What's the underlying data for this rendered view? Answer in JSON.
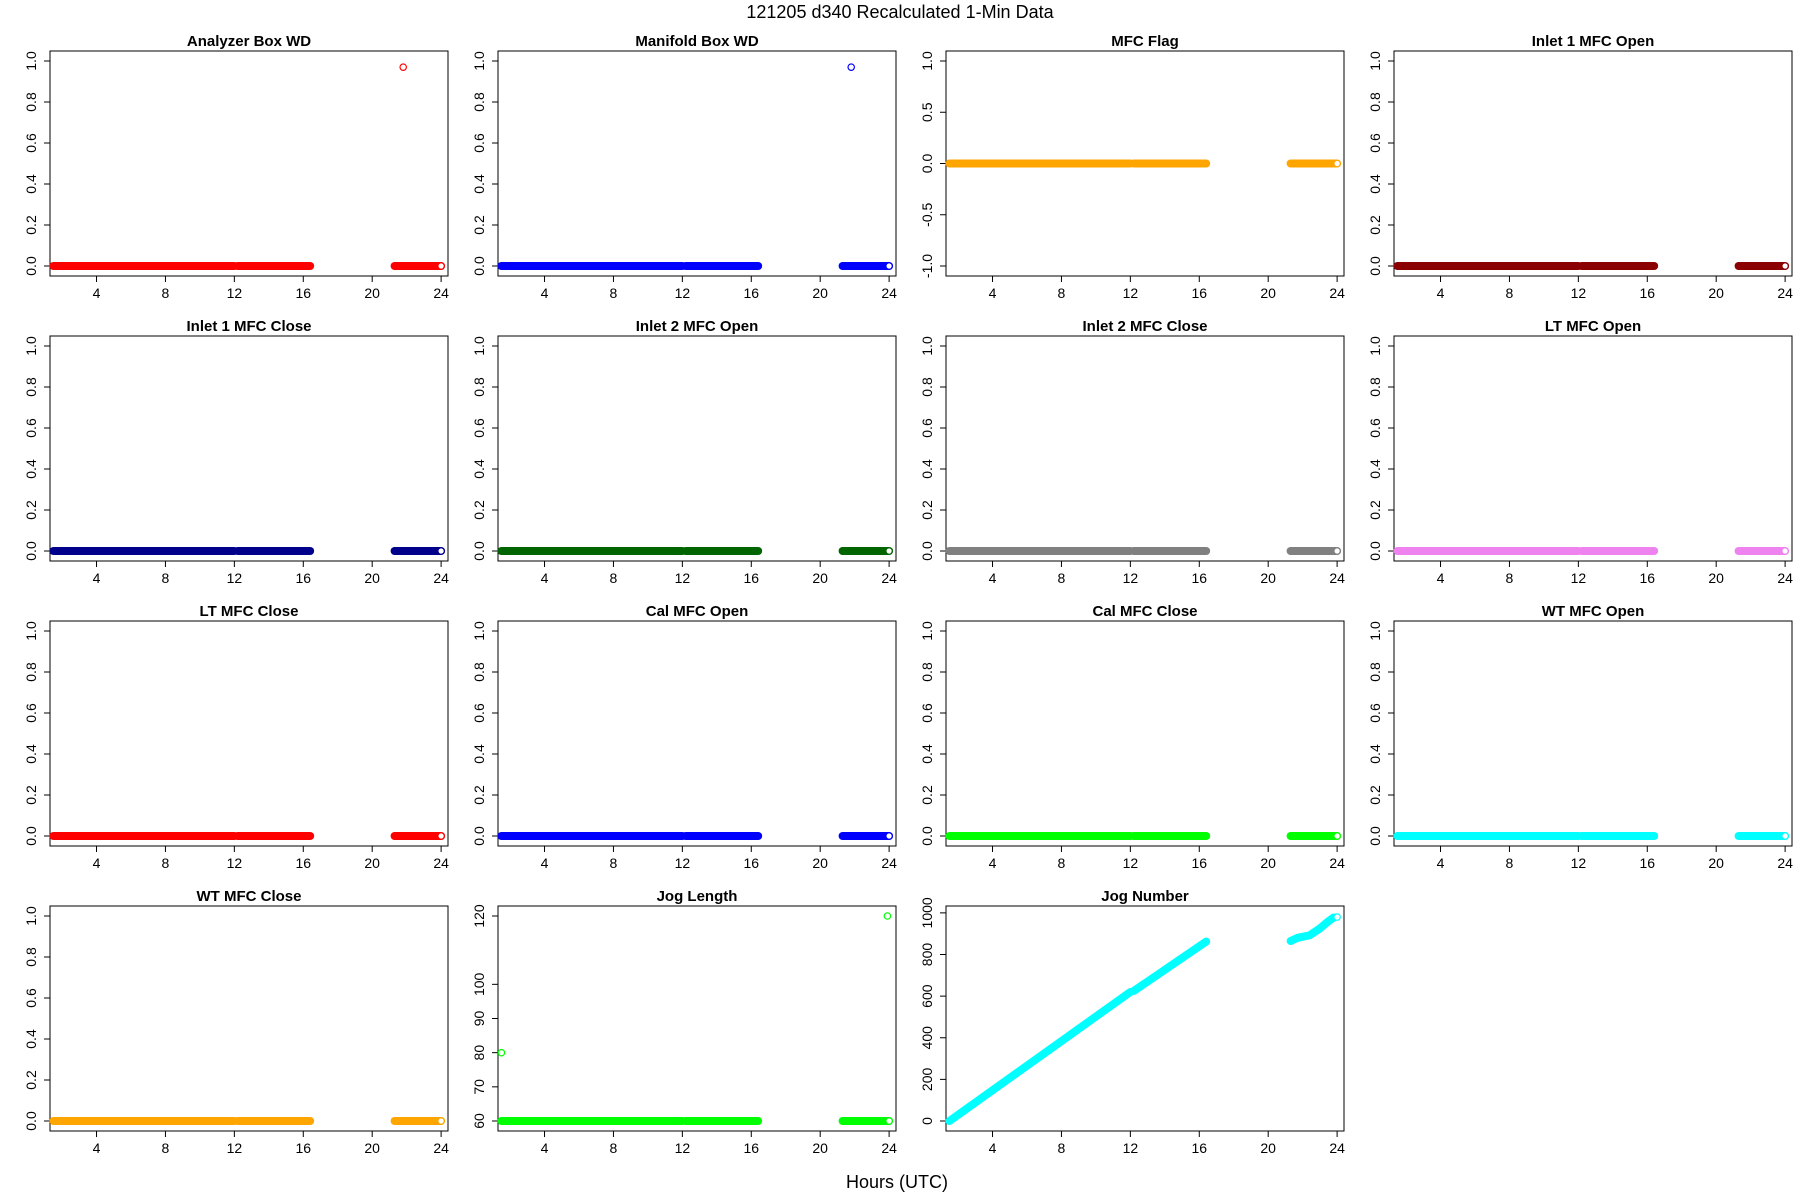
{
  "figure": {
    "title": "121205   d340   Recalculated 1-Min Data",
    "xlabel": "Hours (UTC)"
  },
  "chart_data": [
    {
      "type": "scatter",
      "title": "Analyzer Box WD",
      "xlabel": "",
      "ylabel": "",
      "xlim": [
        1.3,
        24.4
      ],
      "ylim": [
        0,
        1
      ],
      "xticks": [
        4,
        8,
        12,
        16,
        20,
        24
      ],
      "yticks": [
        0.0,
        0.2,
        0.4,
        0.6,
        0.8,
        1.0
      ],
      "ytick_labels": [
        "0.0",
        "0.2",
        "0.4",
        "0.6",
        "0.8",
        "1.0"
      ],
      "color": "#ff0000",
      "segments": [
        {
          "x_from": 1.5,
          "x_to": 12.0,
          "y": 0
        },
        {
          "x_from": 12.2,
          "x_to": 16.4,
          "y": 0
        },
        {
          "x_from": 21.3,
          "x_to": 24.0,
          "y": 0
        }
      ],
      "outliers": [
        {
          "x": 21.8,
          "y": 0.97
        }
      ],
      "final_point": {
        "x": 24.0,
        "y": 0
      }
    },
    {
      "type": "scatter",
      "title": "Manifold Box WD",
      "xlabel": "",
      "ylabel": "",
      "xlim": [
        1.3,
        24.4
      ],
      "ylim": [
        0,
        1
      ],
      "xticks": [
        4,
        8,
        12,
        16,
        20,
        24
      ],
      "yticks": [
        0.0,
        0.2,
        0.4,
        0.6,
        0.8,
        1.0
      ],
      "ytick_labels": [
        "0.0",
        "0.2",
        "0.4",
        "0.6",
        "0.8",
        "1.0"
      ],
      "color": "#0000ff",
      "segments": [
        {
          "x_from": 1.5,
          "x_to": 12.0,
          "y": 0
        },
        {
          "x_from": 12.2,
          "x_to": 16.4,
          "y": 0
        },
        {
          "x_from": 21.3,
          "x_to": 24.0,
          "y": 0
        }
      ],
      "outliers": [
        {
          "x": 21.8,
          "y": 0.97
        }
      ],
      "final_point": {
        "x": 24.0,
        "y": 0
      }
    },
    {
      "type": "scatter",
      "title": "MFC Flag",
      "xlabel": "",
      "ylabel": "",
      "xlim": [
        1.3,
        24.4
      ],
      "ylim": [
        -1,
        1
      ],
      "xticks": [
        4,
        8,
        12,
        16,
        20,
        24
      ],
      "yticks": [
        -1.0,
        -0.5,
        0.0,
        0.5,
        1.0
      ],
      "ytick_labels": [
        "-1.0",
        "-0.5",
        "0.0",
        "0.5",
        "1.0"
      ],
      "color": "#ffa500",
      "segments": [
        {
          "x_from": 1.5,
          "x_to": 12.0,
          "y": 0
        },
        {
          "x_from": 12.2,
          "x_to": 16.4,
          "y": 0
        },
        {
          "x_from": 21.3,
          "x_to": 24.0,
          "y": 0
        }
      ],
      "outliers": [],
      "final_point": {
        "x": 24.0,
        "y": 0
      }
    },
    {
      "type": "scatter",
      "title": "Inlet 1 MFC Open",
      "xlabel": "",
      "ylabel": "",
      "xlim": [
        1.3,
        24.4
      ],
      "ylim": [
        0,
        1
      ],
      "xticks": [
        4,
        8,
        12,
        16,
        20,
        24
      ],
      "yticks": [
        0.0,
        0.2,
        0.4,
        0.6,
        0.8,
        1.0
      ],
      "ytick_labels": [
        "0.0",
        "0.2",
        "0.4",
        "0.6",
        "0.8",
        "1.0"
      ],
      "color": "#8b0000",
      "segments": [
        {
          "x_from": 1.5,
          "x_to": 12.0,
          "y": 0
        },
        {
          "x_from": 12.2,
          "x_to": 16.4,
          "y": 0
        },
        {
          "x_from": 21.3,
          "x_to": 24.0,
          "y": 0
        }
      ],
      "outliers": [],
      "final_point": {
        "x": 24.0,
        "y": 0
      }
    },
    {
      "type": "scatter",
      "title": "Inlet 1 MFC Close",
      "xlabel": "",
      "ylabel": "",
      "xlim": [
        1.3,
        24.4
      ],
      "ylim": [
        0,
        1
      ],
      "xticks": [
        4,
        8,
        12,
        16,
        20,
        24
      ],
      "yticks": [
        0.0,
        0.2,
        0.4,
        0.6,
        0.8,
        1.0
      ],
      "ytick_labels": [
        "0.0",
        "0.2",
        "0.4",
        "0.6",
        "0.8",
        "1.0"
      ],
      "color": "#00008b",
      "segments": [
        {
          "x_from": 1.5,
          "x_to": 12.0,
          "y": 0
        },
        {
          "x_from": 12.2,
          "x_to": 16.4,
          "y": 0
        },
        {
          "x_from": 21.3,
          "x_to": 24.0,
          "y": 0
        }
      ],
      "outliers": [],
      "final_point": {
        "x": 24.0,
        "y": 0
      }
    },
    {
      "type": "scatter",
      "title": "Inlet 2 MFC Open",
      "xlabel": "",
      "ylabel": "",
      "xlim": [
        1.3,
        24.4
      ],
      "ylim": [
        0,
        1
      ],
      "xticks": [
        4,
        8,
        12,
        16,
        20,
        24
      ],
      "yticks": [
        0.0,
        0.2,
        0.4,
        0.6,
        0.8,
        1.0
      ],
      "ytick_labels": [
        "0.0",
        "0.2",
        "0.4",
        "0.6",
        "0.8",
        "1.0"
      ],
      "color": "#006400",
      "segments": [
        {
          "x_from": 1.5,
          "x_to": 12.0,
          "y": 0
        },
        {
          "x_from": 12.2,
          "x_to": 16.4,
          "y": 0
        },
        {
          "x_from": 21.3,
          "x_to": 24.0,
          "y": 0
        }
      ],
      "outliers": [],
      "final_point": {
        "x": 24.0,
        "y": 0
      }
    },
    {
      "type": "scatter",
      "title": "Inlet 2 MFC Close",
      "xlabel": "",
      "ylabel": "",
      "xlim": [
        1.3,
        24.4
      ],
      "ylim": [
        0,
        1
      ],
      "xticks": [
        4,
        8,
        12,
        16,
        20,
        24
      ],
      "yticks": [
        0.0,
        0.2,
        0.4,
        0.6,
        0.8,
        1.0
      ],
      "ytick_labels": [
        "0.0",
        "0.2",
        "0.4",
        "0.6",
        "0.8",
        "1.0"
      ],
      "color": "#808080",
      "segments": [
        {
          "x_from": 1.5,
          "x_to": 12.0,
          "y": 0
        },
        {
          "x_from": 12.2,
          "x_to": 16.4,
          "y": 0
        },
        {
          "x_from": 21.3,
          "x_to": 24.0,
          "y": 0
        }
      ],
      "outliers": [],
      "final_point": {
        "x": 24.0,
        "y": 0
      }
    },
    {
      "type": "scatter",
      "title": "LT MFC Open",
      "xlabel": "",
      "ylabel": "",
      "xlim": [
        1.3,
        24.4
      ],
      "ylim": [
        0,
        1
      ],
      "xticks": [
        4,
        8,
        12,
        16,
        20,
        24
      ],
      "yticks": [
        0.0,
        0.2,
        0.4,
        0.6,
        0.8,
        1.0
      ],
      "ytick_labels": [
        "0.0",
        "0.2",
        "0.4",
        "0.6",
        "0.8",
        "1.0"
      ],
      "color": "#ee82ee",
      "segments": [
        {
          "x_from": 1.5,
          "x_to": 12.0,
          "y": 0
        },
        {
          "x_from": 12.2,
          "x_to": 16.4,
          "y": 0
        },
        {
          "x_from": 21.3,
          "x_to": 24.0,
          "y": 0
        }
      ],
      "outliers": [],
      "final_point": {
        "x": 24.0,
        "y": 0
      }
    },
    {
      "type": "scatter",
      "title": "LT MFC Close",
      "xlabel": "",
      "ylabel": "",
      "xlim": [
        1.3,
        24.4
      ],
      "ylim": [
        0,
        1
      ],
      "xticks": [
        4,
        8,
        12,
        16,
        20,
        24
      ],
      "yticks": [
        0.0,
        0.2,
        0.4,
        0.6,
        0.8,
        1.0
      ],
      "ytick_labels": [
        "0.0",
        "0.2",
        "0.4",
        "0.6",
        "0.8",
        "1.0"
      ],
      "color": "#ff0000",
      "segments": [
        {
          "x_from": 1.5,
          "x_to": 12.0,
          "y": 0
        },
        {
          "x_from": 12.2,
          "x_to": 16.4,
          "y": 0
        },
        {
          "x_from": 21.3,
          "x_to": 24.0,
          "y": 0
        }
      ],
      "outliers": [],
      "final_point": {
        "x": 24.0,
        "y": 0
      }
    },
    {
      "type": "scatter",
      "title": "Cal MFC Open",
      "xlabel": "",
      "ylabel": "",
      "xlim": [
        1.3,
        24.4
      ],
      "ylim": [
        0,
        1
      ],
      "xticks": [
        4,
        8,
        12,
        16,
        20,
        24
      ],
      "yticks": [
        0.0,
        0.2,
        0.4,
        0.6,
        0.8,
        1.0
      ],
      "ytick_labels": [
        "0.0",
        "0.2",
        "0.4",
        "0.6",
        "0.8",
        "1.0"
      ],
      "color": "#0000ff",
      "segments": [
        {
          "x_from": 1.5,
          "x_to": 12.0,
          "y": 0
        },
        {
          "x_from": 12.2,
          "x_to": 16.4,
          "y": 0
        },
        {
          "x_from": 21.3,
          "x_to": 24.0,
          "y": 0
        }
      ],
      "outliers": [],
      "final_point": {
        "x": 24.0,
        "y": 0
      }
    },
    {
      "type": "scatter",
      "title": "Cal MFC Close",
      "xlabel": "",
      "ylabel": "",
      "xlim": [
        1.3,
        24.4
      ],
      "ylim": [
        0,
        1
      ],
      "xticks": [
        4,
        8,
        12,
        16,
        20,
        24
      ],
      "yticks": [
        0.0,
        0.2,
        0.4,
        0.6,
        0.8,
        1.0
      ],
      "ytick_labels": [
        "0.0",
        "0.2",
        "0.4",
        "0.6",
        "0.8",
        "1.0"
      ],
      "color": "#00ff00",
      "segments": [
        {
          "x_from": 1.5,
          "x_to": 12.0,
          "y": 0
        },
        {
          "x_from": 12.2,
          "x_to": 16.4,
          "y": 0
        },
        {
          "x_from": 21.3,
          "x_to": 24.0,
          "y": 0
        }
      ],
      "outliers": [],
      "final_point": {
        "x": 24.0,
        "y": 0
      }
    },
    {
      "type": "scatter",
      "title": "WT MFC Open",
      "xlabel": "",
      "ylabel": "",
      "xlim": [
        1.3,
        24.4
      ],
      "ylim": [
        0,
        1
      ],
      "xticks": [
        4,
        8,
        12,
        16,
        20,
        24
      ],
      "yticks": [
        0.0,
        0.2,
        0.4,
        0.6,
        0.8,
        1.0
      ],
      "ytick_labels": [
        "0.0",
        "0.2",
        "0.4",
        "0.6",
        "0.8",
        "1.0"
      ],
      "color": "#00ffff",
      "segments": [
        {
          "x_from": 1.5,
          "x_to": 12.0,
          "y": 0
        },
        {
          "x_from": 12.2,
          "x_to": 16.4,
          "y": 0
        },
        {
          "x_from": 21.3,
          "x_to": 24.0,
          "y": 0
        }
      ],
      "outliers": [],
      "final_point": {
        "x": 24.0,
        "y": 0
      }
    },
    {
      "type": "scatter",
      "title": "WT MFC Close",
      "xlabel": "",
      "ylabel": "",
      "xlim": [
        1.3,
        24.4
      ],
      "ylim": [
        0,
        1
      ],
      "xticks": [
        4,
        8,
        12,
        16,
        20,
        24
      ],
      "yticks": [
        0.0,
        0.2,
        0.4,
        0.6,
        0.8,
        1.0
      ],
      "ytick_labels": [
        "0.0",
        "0.2",
        "0.4",
        "0.6",
        "0.8",
        "1.0"
      ],
      "color": "#ffa500",
      "segments": [
        {
          "x_from": 1.5,
          "x_to": 12.0,
          "y": 0
        },
        {
          "x_from": 12.2,
          "x_to": 16.4,
          "y": 0
        },
        {
          "x_from": 21.3,
          "x_to": 24.0,
          "y": 0
        }
      ],
      "outliers": [],
      "final_point": {
        "x": 24.0,
        "y": 0
      }
    },
    {
      "type": "scatter",
      "title": "Jog Length",
      "xlabel": "",
      "ylabel": "",
      "xlim": [
        1.3,
        24.4
      ],
      "ylim": [
        60,
        120
      ],
      "xticks": [
        4,
        8,
        12,
        16,
        20,
        24
      ],
      "yticks": [
        60,
        70,
        80,
        90,
        100,
        120
      ],
      "ytick_labels": [
        "60",
        "70",
        "80",
        "90",
        "100",
        "120"
      ],
      "color": "#00ff00",
      "segments": [
        {
          "x_from": 1.5,
          "x_to": 12.0,
          "y": 60
        },
        {
          "x_from": 12.2,
          "x_to": 16.4,
          "y": 60
        },
        {
          "x_from": 21.3,
          "x_to": 24.0,
          "y": 60
        }
      ],
      "outliers": [
        {
          "x": 1.5,
          "y": 80
        },
        {
          "x": 23.9,
          "y": 120
        }
      ],
      "final_point": {
        "x": 24.0,
        "y": 60
      }
    },
    {
      "type": "scatter",
      "title": "Jog Number",
      "xlabel": "",
      "ylabel": "",
      "xlim": [
        1.3,
        24.4
      ],
      "ylim": [
        0,
        985
      ],
      "xticks": [
        4,
        8,
        12,
        16,
        20,
        24
      ],
      "yticks": [
        0,
        200,
        400,
        600,
        800,
        1000
      ],
      "ytick_labels": [
        "0",
        "200",
        "400",
        "600",
        "800",
        "1000"
      ],
      "color": "#00ffff",
      "lines": [
        {
          "x": [
            1.5,
            12.0
          ],
          "y": [
            0,
            620
          ]
        },
        {
          "x": [
            12.2,
            16.4
          ],
          "y": [
            625,
            862
          ]
        },
        {
          "x": [
            21.3,
            21.7,
            22.4,
            23.0,
            23.5,
            23.8
          ],
          "y": [
            865,
            880,
            892,
            925,
            960,
            978
          ]
        }
      ],
      "outliers": [],
      "final_point": {
        "x": 24.0,
        "y": 980
      }
    }
  ]
}
